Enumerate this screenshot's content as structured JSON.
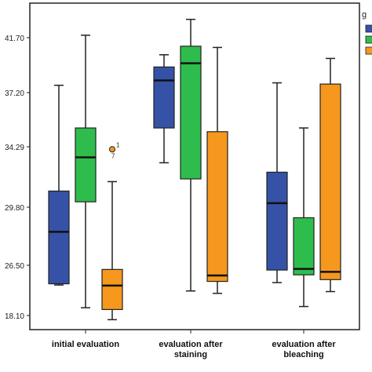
{
  "chart_data": {
    "type": "boxplot",
    "categories": [
      "initial evaluation",
      "evaluation after staining",
      "evaluation after bleaching"
    ],
    "category_lines": [
      [
        "initial evaluation"
      ],
      [
        "evaluation after",
        "staining"
      ],
      [
        "evaluation after",
        "bleaching"
      ]
    ],
    "y_ticks": [
      "18.10",
      "26.50",
      "29.80",
      "34.29",
      "37.20",
      "41.70"
    ],
    "grid": false,
    "legend": {
      "placement": "top-right",
      "partial_label": "g"
    },
    "series": [
      {
        "color": "#3552a7",
        "boxes": [
          {
            "min": 23.2,
            "q1": 23.4,
            "median": 28.4,
            "q3": 31.0,
            "max": 37.8
          },
          {
            "min": 33.1,
            "q1": 35.3,
            "median": 38.2,
            "q3": 39.3,
            "max": 40.3
          },
          {
            "min": 23.6,
            "q1": 25.7,
            "median": 30.1,
            "q3": 32.4,
            "max": 38.0
          }
        ]
      },
      {
        "color": "#2ebd4d",
        "boxes": [
          {
            "min": 19.4,
            "q1": 30.2,
            "median": 33.5,
            "q3": 35.3,
            "max": 41.9
          },
          {
            "min": 22.2,
            "q1": 31.9,
            "median": 39.6,
            "q3": 41.0,
            "max": 43.2
          },
          {
            "min": 19.6,
            "q1": 24.9,
            "median": 25.9,
            "q3": 29.2,
            "max": 35.3
          }
        ]
      },
      {
        "color": "#f5981d",
        "boxes": [
          {
            "min": 17.4,
            "q1": 19.1,
            "median": 23.1,
            "q3": 25.8,
            "max": 31.7
          },
          {
            "min": 21.8,
            "q1": 23.8,
            "median": 24.8,
            "q3": 35.1,
            "max": 40.9
          },
          {
            "min": 22.1,
            "q1": 24.1,
            "median": 25.4,
            "q3": 37.9,
            "max": 40.0
          }
        ]
      }
    ],
    "outliers": [
      {
        "category": "initial evaluation",
        "series_index": 2,
        "value": 34.1,
        "label": "1",
        "sublabel": "7"
      }
    ]
  }
}
